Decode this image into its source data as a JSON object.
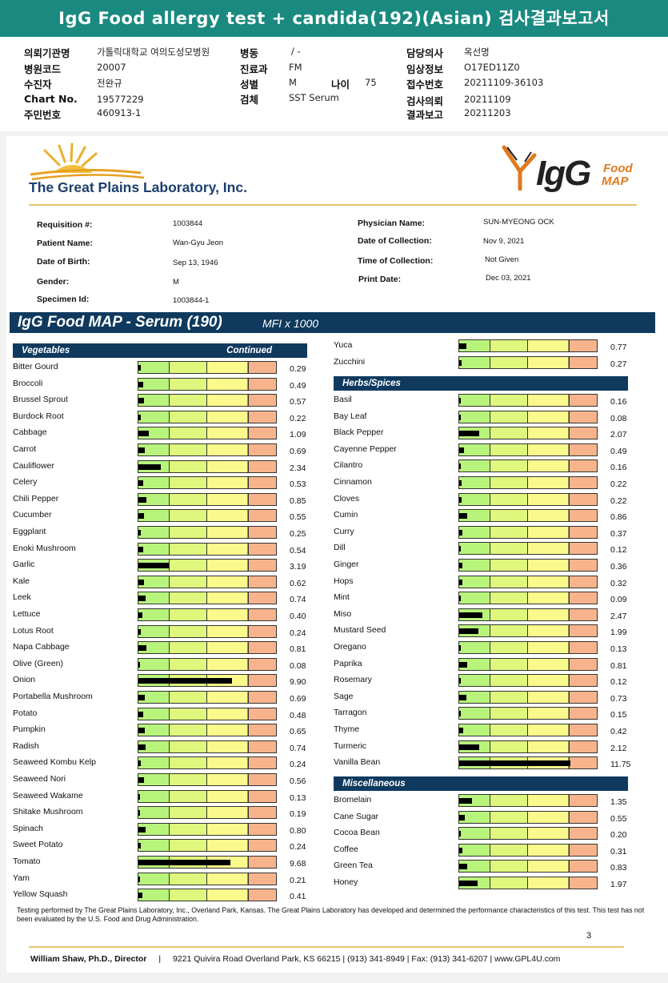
{
  "header": {
    "title": "IgG Food allergy test + candida(192)(Asian) 검사결과보고서",
    "fields": [
      {
        "key": "의뢰기관명",
        "value": "가톨릭대학교 여의도성모병원"
      },
      {
        "key": "병원코드",
        "value": "20007"
      },
      {
        "key": "수진자",
        "value": "전완규"
      },
      {
        "key": "Chart No.",
        "value": "19577229"
      },
      {
        "key": "주민번호",
        "value": "460913-1"
      },
      {
        "key": "병동",
        "value": "/ -"
      },
      {
        "key": "진료과",
        "value": "FM"
      },
      {
        "key": "성별",
        "value": "M"
      },
      {
        "key": "나이",
        "value": "75"
      },
      {
        "key": "검체",
        "value": "SST Serum"
      },
      {
        "key": "담당의사",
        "value": "옥선명"
      },
      {
        "key": "임상정보",
        "value": "O17ED11Z0"
      },
      {
        "key": "접수번호",
        "value": "20211109-36103"
      },
      {
        "key": "검사의뢰",
        "value": "20211109"
      },
      {
        "key": "결과보고",
        "value": "20211203"
      }
    ]
  },
  "lab": {
    "name": "The Great Plains Laboratory, Inc.",
    "product_logo_main": "IgG",
    "product_logo_sub1": "Food",
    "product_logo_sub2": "MAP"
  },
  "patient": {
    "labels": [
      "Requisition #:",
      "Patient Name:",
      "Date of Birth:",
      "Gender:",
      "Specimen Id:",
      "Physician Name:",
      "Date of Collection:",
      "Time of Collection:",
      "Print Date:"
    ],
    "requisition": "1003844",
    "name": "Wan-Gyu Jeon",
    "dob": "Sep 13, 1946",
    "gender": "M",
    "specimen_id": "1003844-1",
    "physician": "SUN-MYEONG OCK",
    "collection_date": "Nov 9, 2021",
    "collection_time": "Not Given",
    "print_date": "Dec 03, 2021"
  },
  "report": {
    "title": "IgG Food MAP - Serum (190)",
    "unit": "MFI x 1000",
    "continued_label": "Continued"
  },
  "categories": {
    "vegetables": "Vegetables",
    "herbs": "Herbs/Spices",
    "misc": "Miscellaneous"
  },
  "scale_max": 14.5,
  "left_foods": [
    {
      "name": "Bitter Gourd",
      "value": 0.29
    },
    {
      "name": "Broccoli",
      "value": 0.49
    },
    {
      "name": "Brussel Sprout",
      "value": 0.57
    },
    {
      "name": "Burdock Root",
      "value": 0.22
    },
    {
      "name": "Cabbage",
      "value": 1.09
    },
    {
      "name": "Carrot",
      "value": 0.69
    },
    {
      "name": "Cauliflower",
      "value": 2.34
    },
    {
      "name": "Celery",
      "value": 0.53
    },
    {
      "name": "Chili Pepper",
      "value": 0.85
    },
    {
      "name": "Cucumber",
      "value": 0.55
    },
    {
      "name": "Eggplant",
      "value": 0.25
    },
    {
      "name": "Enoki Mushroom",
      "value": 0.54
    },
    {
      "name": "Garlic",
      "value": 3.19
    },
    {
      "name": "Kale",
      "value": 0.62
    },
    {
      "name": "Leek",
      "value": 0.74
    },
    {
      "name": "Lettuce",
      "value": 0.4
    },
    {
      "name": "Lotus Root",
      "value": 0.24
    },
    {
      "name": "Napa Cabbage",
      "value": 0.81
    },
    {
      "name": "Olive (Green)",
      "value": 0.08
    },
    {
      "name": "Onion",
      "value": 9.9
    },
    {
      "name": "Portabella Mushroom",
      "value": 0.69
    },
    {
      "name": "Potato",
      "value": 0.48
    },
    {
      "name": "Pumpkin",
      "value": 0.65
    },
    {
      "name": "Radish",
      "value": 0.74
    },
    {
      "name": "Seaweed Kombu Kelp",
      "value": 0.24
    },
    {
      "name": "Seaweed Nori",
      "value": 0.56
    },
    {
      "name": "Seaweed Wakame",
      "value": 0.13
    },
    {
      "name": "Shitake Mushroom",
      "value": 0.19
    },
    {
      "name": "Spinach",
      "value": 0.8
    },
    {
      "name": "Sweet Potato",
      "value": 0.24
    },
    {
      "name": "Tomato",
      "value": 9.68
    },
    {
      "name": "Yam",
      "value": 0.21
    },
    {
      "name": "Yellow Squash",
      "value": 0.41
    }
  ],
  "right_top_foods": [
    {
      "name": "Yuca",
      "value": 0.77
    },
    {
      "name": "Zucchini",
      "value": 0.27
    }
  ],
  "herbs_foods": [
    {
      "name": "Basil",
      "value": 0.16
    },
    {
      "name": "Bay Leaf",
      "value": 0.08
    },
    {
      "name": "Black Pepper",
      "value": 2.07
    },
    {
      "name": "Cayenne Pepper",
      "value": 0.49
    },
    {
      "name": "Cilantro",
      "value": 0.16
    },
    {
      "name": "Cinnamon",
      "value": 0.22
    },
    {
      "name": "Cloves",
      "value": 0.22
    },
    {
      "name": "Cumin",
      "value": 0.86
    },
    {
      "name": "Curry",
      "value": 0.37
    },
    {
      "name": "Dill",
      "value": 0.12
    },
    {
      "name": "Ginger",
      "value": 0.36
    },
    {
      "name": "Hops",
      "value": 0.32
    },
    {
      "name": "Mint",
      "value": 0.09
    },
    {
      "name": "Miso",
      "value": 2.47
    },
    {
      "name": "Mustard Seed",
      "value": 1.99
    },
    {
      "name": "Oregano",
      "value": 0.13
    },
    {
      "name": "Paprika",
      "value": 0.81
    },
    {
      "name": "Rosemary",
      "value": 0.12
    },
    {
      "name": "Sage",
      "value": 0.73
    },
    {
      "name": "Tarragon",
      "value": 0.15
    },
    {
      "name": "Thyme",
      "value": 0.42
    },
    {
      "name": "Turmeric",
      "value": 2.12
    },
    {
      "name": "Vanilla Bean",
      "value": 11.75
    }
  ],
  "misc_foods": [
    {
      "name": "Bromelain",
      "value": 1.35
    },
    {
      "name": "Cane Sugar",
      "value": 0.55
    },
    {
      "name": "Cocoa Bean",
      "value": 0.2
    },
    {
      "name": "Coffee",
      "value": 0.31
    },
    {
      "name": "Green Tea",
      "value": 0.83
    },
    {
      "name": "Honey",
      "value": 1.97
    }
  ],
  "note": "Testing performed by The Great Plains Laboratory, Inc., Overland Park, Kansas.  The Great Plains Laboratory has developed and determined the performance characteristics of this test.  This test has not been evaluated by the U.S.  Food and Drug Administration.",
  "page_number": "3",
  "footer": {
    "director": "William Shaw, Ph.D., Director",
    "address": "9221 Quivira Road Overland Park, KS 66215 | (913) 341-8949 | Fax: (913) 341-6207 | www.GPL4U.com"
  },
  "colors": {
    "teal_header": "#1a8a80",
    "navy": "#0f3a5e",
    "zone_green": "#b8f47c",
    "zone_lightgreen": "#def77c",
    "zone_yellow": "#faf98c",
    "zone_orange": "#f7b48c",
    "gold": "#e8c46a"
  }
}
